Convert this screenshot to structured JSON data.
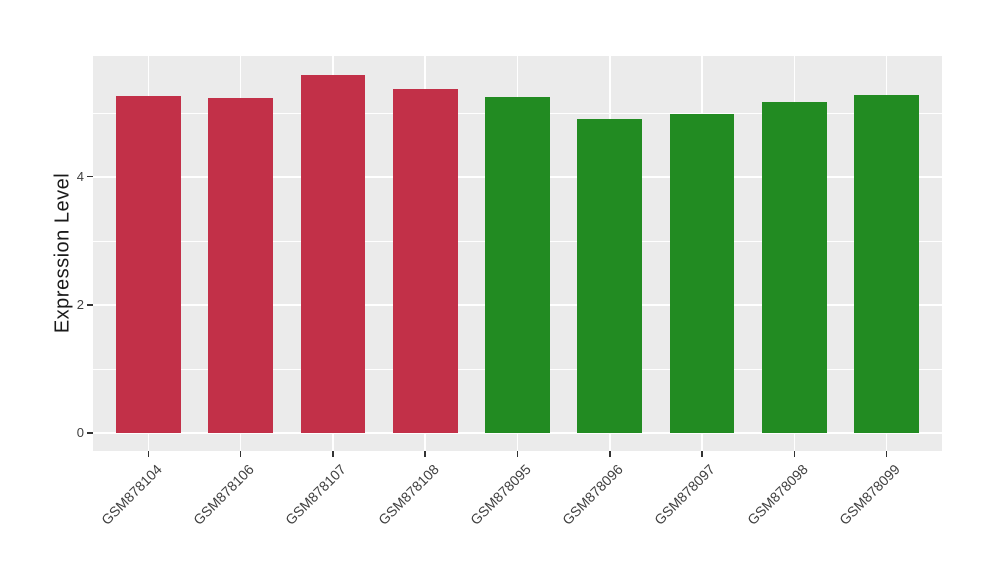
{
  "figure": {
    "background_color": "#FFFFFF"
  },
  "chart_data": {
    "type": "bar",
    "title": "",
    "xlabel": "",
    "ylabel": "Expression Level",
    "categories": [
      "GSM878104",
      "GSM878106",
      "GSM878107",
      "GSM878108",
      "GSM878095",
      "GSM878096",
      "GSM878097",
      "GSM878098",
      "GSM878099"
    ],
    "series": [
      {
        "name": "Expression Level",
        "values": [
          5.27,
          5.23,
          5.6,
          5.38,
          5.25,
          4.91,
          4.99,
          5.17,
          5.28
        ]
      }
    ],
    "bar_colors": [
      "#C23048",
      "#C23048",
      "#C23048",
      "#C23048",
      "#228B22",
      "#228B22",
      "#228B22",
      "#228B22",
      "#228B22"
    ],
    "color_groups": {
      "red_samples": [
        "GSM878104",
        "GSM878106",
        "GSM878107",
        "GSM878108"
      ],
      "green_samples": [
        "GSM878095",
        "GSM878096",
        "GSM878097",
        "GSM878098",
        "GSM878099"
      ]
    },
    "ylim": [
      -0.28,
      5.89
    ],
    "ytick_labels": [
      "0",
      "2",
      "4"
    ],
    "ytick_values": [
      0,
      2,
      4
    ],
    "minor_gridline_values": [
      1,
      3,
      5
    ],
    "x_tick_label_rotation_deg": 45,
    "grid": "on",
    "legend_position": "none",
    "bar_width_ratio": 0.7,
    "style": {
      "panel_background": "#EBEBEB",
      "gridline_color": "#FFFFFF",
      "axis_text_color": "#404040",
      "axis_title_color": "#1A1A1A",
      "tick_mark_color": "#333333"
    }
  }
}
